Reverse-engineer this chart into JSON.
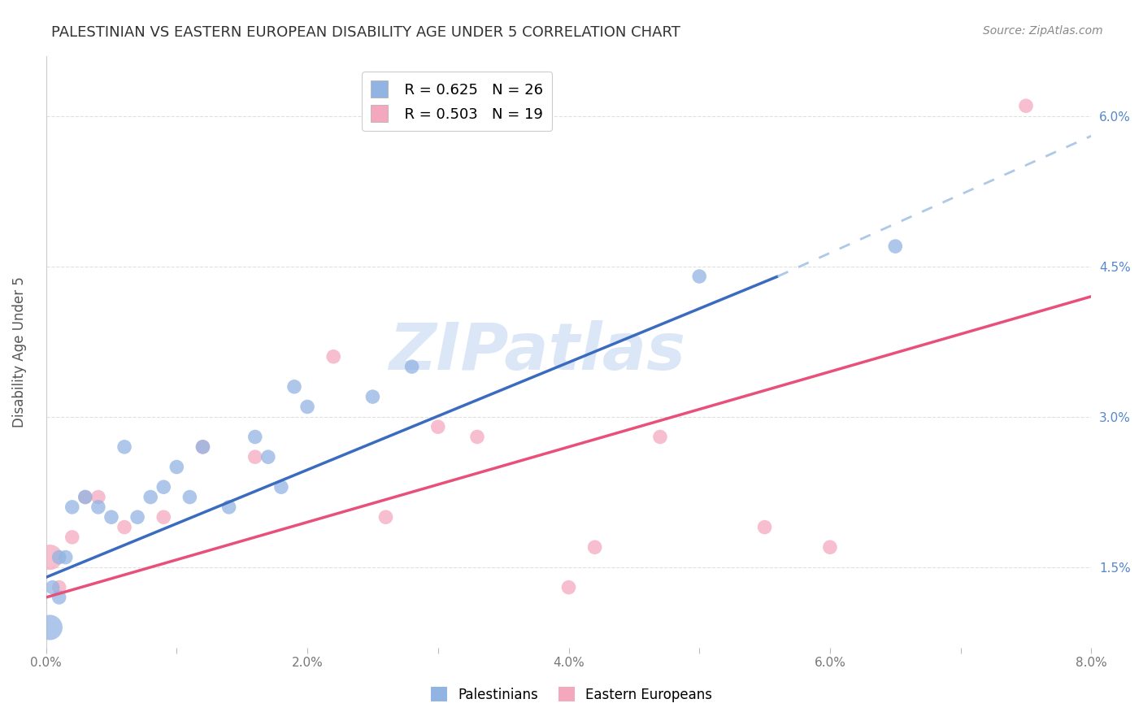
{
  "title": "PALESTINIAN VS EASTERN EUROPEAN DISABILITY AGE UNDER 5 CORRELATION CHART",
  "source": "Source: ZipAtlas.com",
  "ylabel": "Disability Age Under 5",
  "xlim": [
    0.0,
    0.08
  ],
  "ylim": [
    0.007,
    0.066
  ],
  "xtick_vals": [
    0.0,
    0.01,
    0.02,
    0.03,
    0.04,
    0.05,
    0.06,
    0.07,
    0.08
  ],
  "xtick_labels": [
    "0.0%",
    "",
    "2.0%",
    "",
    "4.0%",
    "",
    "6.0%",
    "",
    "8.0%"
  ],
  "ytick_vals": [
    0.015,
    0.03,
    0.045,
    0.06
  ],
  "ytick_labels": [
    "1.5%",
    "3.0%",
    "4.5%",
    "6.0%"
  ],
  "legend_r1": "R = 0.625",
  "legend_n1": "N = 26",
  "legend_r2": "R = 0.503",
  "legend_n2": "N = 19",
  "blue_color": "#92b4e3",
  "pink_color": "#f4a8be",
  "blue_line_color": "#3a6bbf",
  "pink_line_color": "#e8507a",
  "blue_dash_color": "#adc8e8",
  "watermark_text": "ZIPatlas",
  "watermark_color": "#ccddf5",
  "background_color": "#ffffff",
  "grid_color": "#e0e0e0",
  "palestinians_x": [
    0.0003,
    0.0005,
    0.001,
    0.001,
    0.0015,
    0.002,
    0.003,
    0.004,
    0.005,
    0.006,
    0.007,
    0.008,
    0.009,
    0.01,
    0.011,
    0.012,
    0.014,
    0.016,
    0.017,
    0.018,
    0.019,
    0.02,
    0.025,
    0.028,
    0.05,
    0.065
  ],
  "palestinians_y": [
    0.009,
    0.013,
    0.012,
    0.016,
    0.016,
    0.021,
    0.022,
    0.021,
    0.02,
    0.027,
    0.02,
    0.022,
    0.023,
    0.025,
    0.022,
    0.027,
    0.021,
    0.028,
    0.026,
    0.023,
    0.033,
    0.031,
    0.032,
    0.035,
    0.044,
    0.047
  ],
  "palestinians_size": [
    100,
    100,
    100,
    100,
    100,
    100,
    100,
    100,
    100,
    100,
    100,
    100,
    100,
    100,
    100,
    100,
    100,
    100,
    100,
    100,
    100,
    100,
    100,
    100,
    100,
    100
  ],
  "eastern_x": [
    0.0003,
    0.001,
    0.002,
    0.003,
    0.004,
    0.006,
    0.009,
    0.012,
    0.016,
    0.022,
    0.026,
    0.03,
    0.033,
    0.04,
    0.042,
    0.047,
    0.055,
    0.06,
    0.075
  ],
  "eastern_y": [
    0.016,
    0.013,
    0.018,
    0.022,
    0.022,
    0.019,
    0.02,
    0.027,
    0.026,
    0.036,
    0.02,
    0.029,
    0.028,
    0.013,
    0.017,
    0.028,
    0.019,
    0.017,
    0.061
  ],
  "eastern_size_large": 2,
  "blue_line_x0": 0.0,
  "blue_line_x_solid_end": 0.056,
  "blue_line_x_dash_end": 0.08,
  "blue_line_y0": 0.014,
  "blue_line_y_solid_end": 0.044,
  "blue_line_y_dash_end": 0.058,
  "pink_line_x0": 0.0,
  "pink_line_x_end": 0.08,
  "pink_line_y0": 0.012,
  "pink_line_y_end": 0.042
}
